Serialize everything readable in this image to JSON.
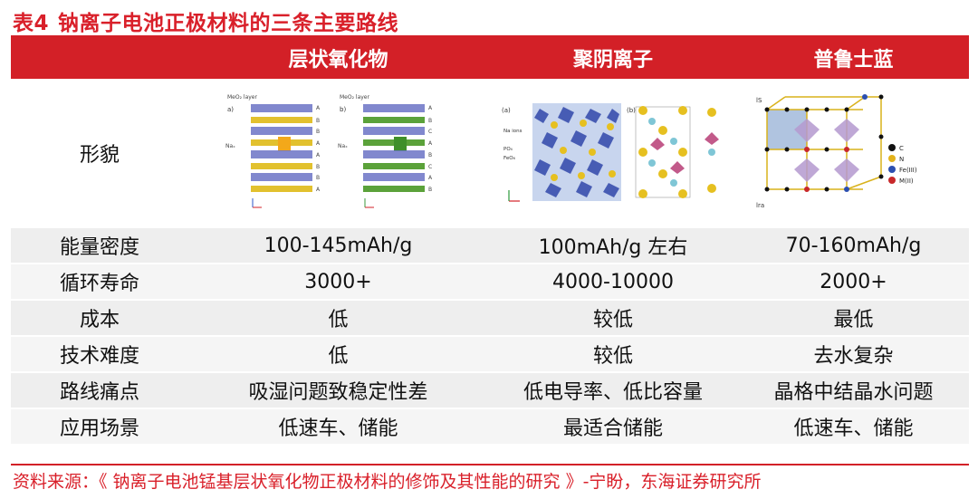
{
  "title": {
    "number": "表4",
    "text": "钠离子电池正极材料的三条主要路线"
  },
  "table": {
    "headers": [
      "",
      "层状氧化物",
      "聚阴离子",
      "普鲁士蓝"
    ],
    "image_row_label": "形貌",
    "image_labels": {
      "layered": {
        "a": "a)",
        "b": "b)",
        "mo2_layer_a": "MeO₂ layer",
        "mo2_layer_b": "MeO₂ layer",
        "na_a": "Naₓ",
        "na_b": "Naₓ",
        "stack_a": [
          "A",
          "B",
          "B",
          "A",
          "A",
          "B",
          "B",
          "A"
        ],
        "stack_b": [
          "A",
          "B",
          "C",
          "A",
          "B",
          "C",
          "A",
          "B"
        ]
      },
      "polyanion": {
        "a": "(a)",
        "b": "(b)",
        "na_ions": "Na ions",
        "po4": "PO₄",
        "feo6": "FeO₆"
      },
      "prussian": {
        "ls": "lS",
        "hs": "lra",
        "legend": [
          "C",
          "N",
          "Fe(III)",
          "M(II)"
        ]
      }
    },
    "rows": [
      {
        "label": "能量密度",
        "values": [
          "100-145mAh/g",
          "100mAh/g 左右",
          "70-160mAh/g"
        ]
      },
      {
        "label": "循环寿命",
        "values": [
          "3000+",
          "4000-10000",
          "2000+"
        ]
      },
      {
        "label": "成本",
        "values": [
          "低",
          "较低",
          "最低"
        ]
      },
      {
        "label": "技术难度",
        "values": [
          "低",
          "较低",
          "去水复杂"
        ]
      },
      {
        "label": "路线痛点",
        "values": [
          "吸湿问题致稳定性差",
          "低电导率、低比容量",
          "晶格中结晶水问题"
        ]
      },
      {
        "label": "应用场景",
        "values": [
          "低速车、储能",
          "最适合储能",
          "低速车、储能"
        ]
      }
    ]
  },
  "source": "资料来源：《 钠离子电池锰基层状氧化物正极材料的修饰及其性能的研究 》-宁盼，东海证券研究所",
  "colors": {
    "accent_red": "#d32027",
    "row_gray": "#eeeeee",
    "legend_C": "#111111",
    "legend_N": "#e3b21b",
    "legend_Fe": "#2c4fb0",
    "legend_M": "#c8282a"
  }
}
